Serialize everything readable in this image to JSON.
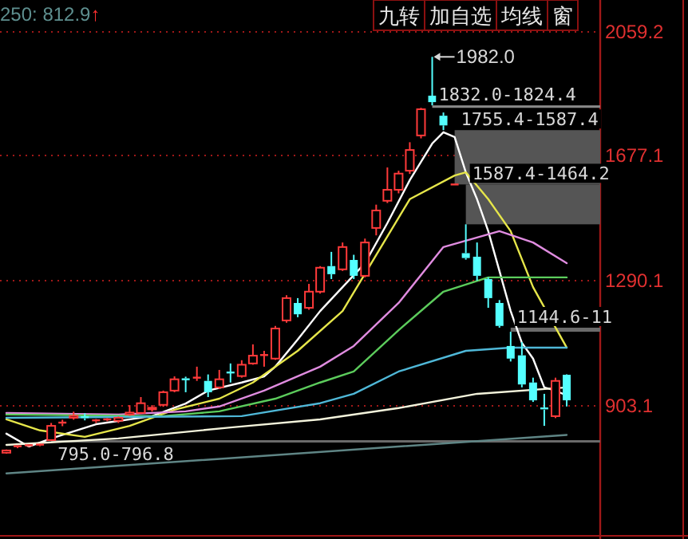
{
  "chart_data": {
    "type": "candlestick",
    "categories": [
      null,
      null,
      null,
      null,
      null,
      null,
      null,
      null,
      null,
      null,
      null,
      null,
      null,
      null,
      null,
      null,
      null,
      null,
      null,
      null,
      null,
      null,
      null,
      null,
      null,
      null,
      null,
      null,
      null,
      null,
      null,
      null,
      null,
      null,
      null,
      null,
      null,
      null,
      null,
      null,
      null,
      null,
      null,
      null,
      null,
      null,
      null,
      null,
      null,
      null,
      null
    ],
    "ohlc": [
      [
        758,
        768,
        755,
        765
      ],
      [
        775,
        780,
        772,
        778
      ],
      [
        778,
        783,
        776,
        781
      ],
      [
        780,
        785,
        778,
        783
      ],
      [
        797,
        850,
        795,
        841
      ],
      [
        848,
        860,
        840,
        851
      ],
      [
        866,
        885,
        860,
        872
      ],
      [
        868,
        880,
        858,
        864
      ],
      [
        855,
        862,
        850,
        858
      ],
      [
        858,
        865,
        855,
        861
      ],
      [
        857,
        870,
        850,
        866
      ],
      [
        876,
        905,
        872,
        882
      ],
      [
        881,
        930,
        878,
        911
      ],
      [
        892,
        905,
        885,
        897
      ],
      [
        906,
        950,
        900,
        945
      ],
      [
        950,
        994,
        945,
        985
      ],
      [
        988,
        993,
        945,
        982
      ],
      [
        988,
        1024,
        980,
        990
      ],
      [
        980,
        1000,
        930,
        945
      ],
      [
        960,
        1014,
        955,
        985
      ],
      [
        1006,
        1034,
        975,
        1004
      ],
      [
        995,
        1044,
        990,
        1030
      ],
      [
        1034,
        1093,
        1030,
        1058
      ],
      [
        1058,
        1073,
        1024,
        1060
      ],
      [
        1049,
        1150,
        1045,
        1142
      ],
      [
        1167,
        1245,
        1160,
        1236
      ],
      [
        1221,
        1236,
        1177,
        1186
      ],
      [
        1206,
        1280,
        1200,
        1256
      ],
      [
        1256,
        1335,
        1250,
        1330
      ],
      [
        1335,
        1379,
        1295,
        1310
      ],
      [
        1325,
        1408,
        1320,
        1394
      ],
      [
        1354,
        1370,
        1295,
        1305
      ],
      [
        1305,
        1420,
        1300,
        1408
      ],
      [
        1453,
        1525,
        1430,
        1507
      ],
      [
        1537,
        1640,
        1530,
        1571
      ],
      [
        1571,
        1630,
        1560,
        1621
      ],
      [
        1630,
        1718,
        1620,
        1694
      ],
      [
        1739,
        1824.4,
        1730,
        1820
      ],
      [
        1862,
        1982.0,
        1832.0,
        1842
      ],
      [
        1800,
        1810,
        1755.4,
        1770
      ],
      [
        1587.4,
        1587.4,
        1587.4,
        1587.4
      ],
      [
        1375,
        1464.2,
        1355,
        1360
      ],
      [
        1364,
        1408,
        1290,
        1305
      ],
      [
        1295,
        1300,
        1206,
        1236
      ],
      [
        1221,
        1230,
        1144.6,
        1150
      ],
      [
        1088,
        1132,
        1040,
        1049
      ],
      [
        1059,
        1100,
        960,
        969
      ],
      [
        975,
        990,
        915,
        920
      ],
      [
        895,
        940,
        841,
        891
      ],
      [
        871,
        990,
        865,
        980
      ],
      [
        999,
        1000,
        901,
        920
      ]
    ],
    "series": [
      {
        "type": "line",
        "color": "#ffffff",
        "values": [
          817,
          null,
          777,
          null,
          802,
          null,
          null,
          null,
          846,
          null,
          null,
          null,
          null,
          871,
          null,
          null,
          910,
          null,
          950,
          null,
          null,
          975,
          null,
          994,
          1024,
          null,
          1108,
          null,
          1196,
          null,
          1270,
          null,
          1344,
          null,
          1468,
          null,
          1601,
          null,
          1714,
          1749,
          1734,
          1625,
          1542,
          1443,
          1320,
          1196,
          1098,
          1049,
          960,
          950,
          935
        ]
      },
      {
        "type": "line",
        "color": "#e6e64a",
        "values": [
          861,
          null,
          null,
          827,
          null,
          null,
          null,
          807,
          null,
          null,
          null,
          841,
          null,
          null,
          null,
          891,
          null,
          null,
          null,
          925,
          null,
          null,
          975,
          null,
          null,
          null,
          1073,
          null,
          null,
          null,
          1196,
          null,
          null,
          1369,
          null,
          null,
          1542,
          null,
          null,
          null,
          1615,
          1625,
          null,
          1542,
          null,
          1443,
          null,
          1270,
          null,
          null,
          1083
        ]
      },
      {
        "type": "line",
        "color": "#e08ce0",
        "values": [
          881,
          null,
          null,
          null,
          null,
          null,
          null,
          null,
          null,
          null,
          876,
          null,
          null,
          null,
          null,
          null,
          886,
          null,
          null,
          901,
          null,
          null,
          null,
          950,
          null,
          null,
          null,
          null,
          1024,
          null,
          null,
          1088,
          null,
          null,
          null,
          1221,
          null,
          null,
          null,
          1394,
          null,
          null,
          null,
          null,
          1443,
          null,
          null,
          1408,
          null,
          null,
          1344
        ]
      },
      {
        "type": "line",
        "color": "#5ccc5c",
        "values": [
          876,
          null,
          null,
          null,
          null,
          null,
          null,
          null,
          null,
          null,
          null,
          null,
          null,
          null,
          871,
          null,
          null,
          null,
          null,
          886,
          null,
          null,
          null,
          null,
          925,
          null,
          null,
          null,
          975,
          null,
          null,
          1009,
          null,
          null,
          null,
          1137,
          null,
          null,
          null,
          1256,
          null,
          null,
          null,
          1300,
          null,
          null,
          null,
          null,
          null,
          null,
          1300
        ]
      },
      {
        "type": "line",
        "color": "#4fb8d8",
        "values": [
          866,
          null,
          null,
          null,
          null,
          null,
          null,
          null,
          null,
          null,
          null,
          null,
          null,
          null,
          null,
          null,
          null,
          null,
          null,
          null,
          null,
          871,
          null,
          null,
          null,
          null,
          null,
          null,
          911,
          null,
          null,
          940,
          null,
          null,
          null,
          1009,
          null,
          null,
          null,
          null,
          null,
          1073,
          null,
          null,
          null,
          1083,
          null,
          null,
          null,
          null,
          1083
        ]
      },
      {
        "type": "line",
        "color": "#f4f4dc",
        "values": [
          782,
          null,
          null,
          null,
          null,
          null,
          null,
          null,
          null,
          null,
          802,
          null,
          null,
          null,
          null,
          null,
          null,
          null,
          null,
          null,
          836,
          null,
          null,
          null,
          null,
          null,
          null,
          null,
          861,
          null,
          null,
          null,
          null,
          null,
          null,
          896,
          null,
          null,
          null,
          null,
          null,
          null,
          940,
          null,
          null,
          null,
          null,
          null,
          null,
          null,
          960
        ]
      },
      {
        "type": "line",
        "color": "#5f8585",
        "values": [
          694,
          null,
          null,
          null,
          null,
          null,
          null,
          null,
          null,
          null,
          null,
          null,
          null,
          null,
          null,
          null,
          null,
          null,
          null,
          null,
          null,
          null,
          null,
          null,
          null,
          753,
          null,
          null,
          null,
          null,
          null,
          null,
          null,
          null,
          null,
          null,
          null,
          null,
          null,
          null,
          null,
          null,
          null,
          null,
          null,
          null,
          null,
          null,
          null,
          null,
          813
        ]
      }
    ],
    "ylim": [
      501,
      2059.2
    ],
    "yticks": [
      903.1,
      1290.1,
      1677.1,
      2059.2
    ],
    "grid": "y",
    "tick_labels": "y",
    "bands": [
      {
        "axis": "y",
        "from": 1824.4,
        "to": 1832.0,
        "label": "1832.0-1824.4",
        "color": "#8a8a8a"
      },
      {
        "axis": "y",
        "from": 1587.4,
        "to": 1755.4,
        "label": "1755.4-1587.4",
        "color": "#555555"
      },
      {
        "axis": "y",
        "from": 1464.2,
        "to": 1587.4,
        "label": "1587.4-1464.2",
        "color": "#555555"
      },
      {
        "axis": "y",
        "from": 1132,
        "to": 1144.6,
        "label": "1144.6-11",
        "color": "#6a6a6a"
      },
      {
        "axis": "y",
        "from": 795.0,
        "to": 796.8,
        "label": "795.0-796.8",
        "color": "#6a6a6a"
      }
    ],
    "annotations": [
      "250: 812.9↑",
      "九转",
      "加自选",
      "均线",
      "窗",
      "1982.0"
    ]
  }
}
